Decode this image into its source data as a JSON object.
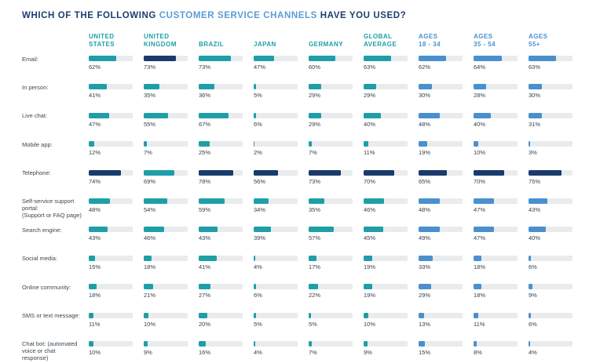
{
  "title": {
    "prefix": "WHICH OF THE FOLLOWING ",
    "highlight": "CUSTOMER SERVICE CHANNELS",
    "suffix": " HAVE YOU USED?"
  },
  "colors": {
    "title_navy": "#1D3C6E",
    "title_highlight_blue": "#5B9BD7",
    "teal": "#1E9FA8",
    "age_blue": "#4A90CE",
    "highlight_navy": "#1B3A6B",
    "bar_track_gray": "#E9EBED",
    "text_gray": "#3A4750"
  },
  "chart_data": {
    "type": "bar",
    "orientation": "horizontal",
    "value_suffix": "%",
    "xmax": 100,
    "title": "WHICH OF THE FOLLOWING CUSTOMER SERVICE CHANNELS HAVE YOU USED?",
    "columns": [
      {
        "label": [
          "UNITED",
          "STATES"
        ],
        "group": "teal"
      },
      {
        "label": [
          "UNITED",
          "KINGDOM"
        ],
        "group": "teal"
      },
      {
        "label": [
          "BRAZIL"
        ],
        "group": "teal"
      },
      {
        "label": [
          "JAPAN"
        ],
        "group": "teal"
      },
      {
        "label": [
          "GERMANY"
        ],
        "group": "teal"
      },
      {
        "label": [
          "GLOBAL",
          "AVERAGE"
        ],
        "group": "teal"
      },
      {
        "label": [
          "AGES",
          "18 - 34"
        ],
        "group": "blue"
      },
      {
        "label": [
          "AGES",
          "35 - 54"
        ],
        "group": "blue"
      },
      {
        "label": [
          "AGES",
          "55+"
        ],
        "group": "blue"
      }
    ],
    "rows": [
      {
        "label": [
          "Email:"
        ],
        "values": [
          62,
          73,
          73,
          47,
          60,
          63,
          62,
          64,
          63
        ]
      },
      {
        "label": [
          "In person:"
        ],
        "values": [
          41,
          35,
          36,
          5,
          29,
          29,
          30,
          28,
          30
        ]
      },
      {
        "label": [
          "Live chat:"
        ],
        "values": [
          47,
          55,
          67,
          6,
          29,
          40,
          48,
          40,
          31
        ]
      },
      {
        "label": [
          "Mobile app:"
        ],
        "values": [
          12,
          7,
          25,
          2,
          7,
          11,
          19,
          10,
          3
        ]
      },
      {
        "label": [
          "Telephone:"
        ],
        "values": [
          74,
          69,
          78,
          56,
          73,
          70,
          65,
          70,
          75
        ]
      },
      {
        "label": [
          "Self-service support portal:",
          "(Support or FAQ page)"
        ],
        "values": [
          48,
          54,
          59,
          34,
          35,
          46,
          48,
          47,
          43
        ]
      },
      {
        "label": [
          "Search engine:"
        ],
        "values": [
          43,
          46,
          43,
          39,
          57,
          45,
          49,
          47,
          40
        ]
      },
      {
        "label": [
          "Social media:"
        ],
        "values": [
          15,
          18,
          41,
          4,
          17,
          19,
          33,
          18,
          6
        ]
      },
      {
        "label": [
          "Online community:"
        ],
        "values": [
          18,
          21,
          27,
          6,
          22,
          19,
          29,
          18,
          9
        ]
      },
      {
        "label": [
          "SMS or text message:"
        ],
        "values": [
          11,
          10,
          20,
          5,
          5,
          10,
          13,
          11,
          6
        ]
      },
      {
        "label": [
          "Chat bot: (automated",
          "voice or chat response)"
        ],
        "values": [
          10,
          9,
          16,
          4,
          7,
          9,
          15,
          8,
          4
        ]
      }
    ],
    "navy_highlight_cells": [
      [
        0,
        1
      ],
      [
        4,
        0
      ],
      [
        4,
        2
      ],
      [
        4,
        3
      ],
      [
        4,
        4
      ],
      [
        4,
        5
      ],
      [
        4,
        6
      ],
      [
        4,
        7
      ],
      [
        4,
        8
      ]
    ],
    "legend_note": "navy bar = highest-used channel within each column"
  }
}
